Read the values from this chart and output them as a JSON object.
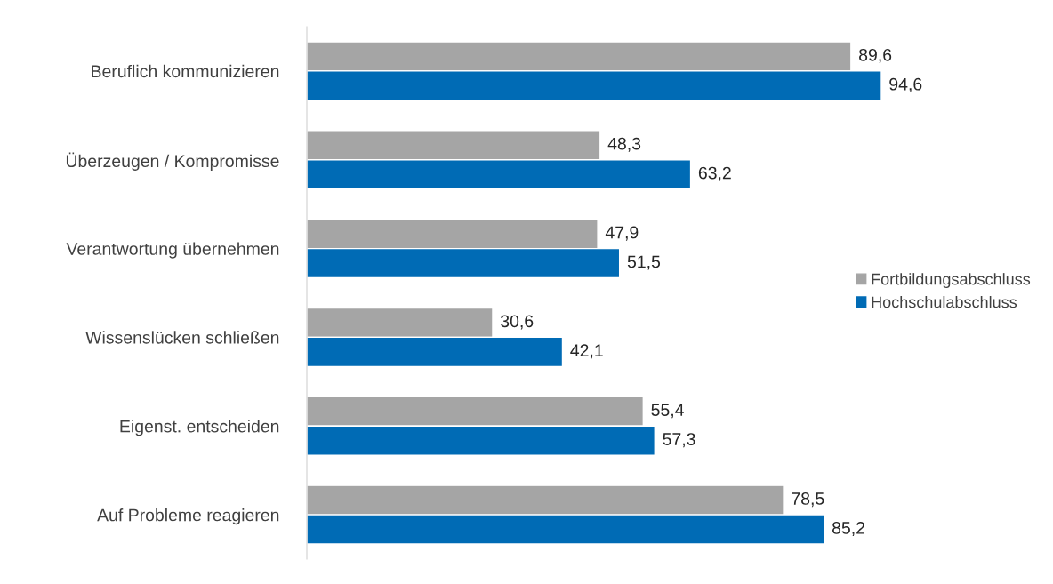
{
  "chart_data": {
    "type": "bar",
    "orientation": "horizontal",
    "categories": [
      "Beruflich kommunizieren",
      "Überzeugen / Kompromisse",
      "Verantwortung übernehmen",
      "Wissenslücken schließen",
      "Eigenst. entscheiden",
      "Auf Probleme reagieren"
    ],
    "series": [
      {
        "name": "Fortbildungsabschluss",
        "color": "#a5a5a5",
        "values": [
          89.6,
          48.3,
          47.9,
          30.6,
          55.4,
          78.5
        ],
        "value_labels": [
          "89,6",
          "48,3",
          "47,9",
          "30,6",
          "55,4",
          "78,5"
        ]
      },
      {
        "name": "Hochschulabschluss",
        "color": "#006bb5",
        "values": [
          94.6,
          63.2,
          51.5,
          42.1,
          57.3,
          85.2
        ],
        "value_labels": [
          "94,6",
          "63,2",
          "51,5",
          "42,1",
          "57,3",
          "85,2"
        ]
      }
    ],
    "legend": "right",
    "grid": false
  }
}
